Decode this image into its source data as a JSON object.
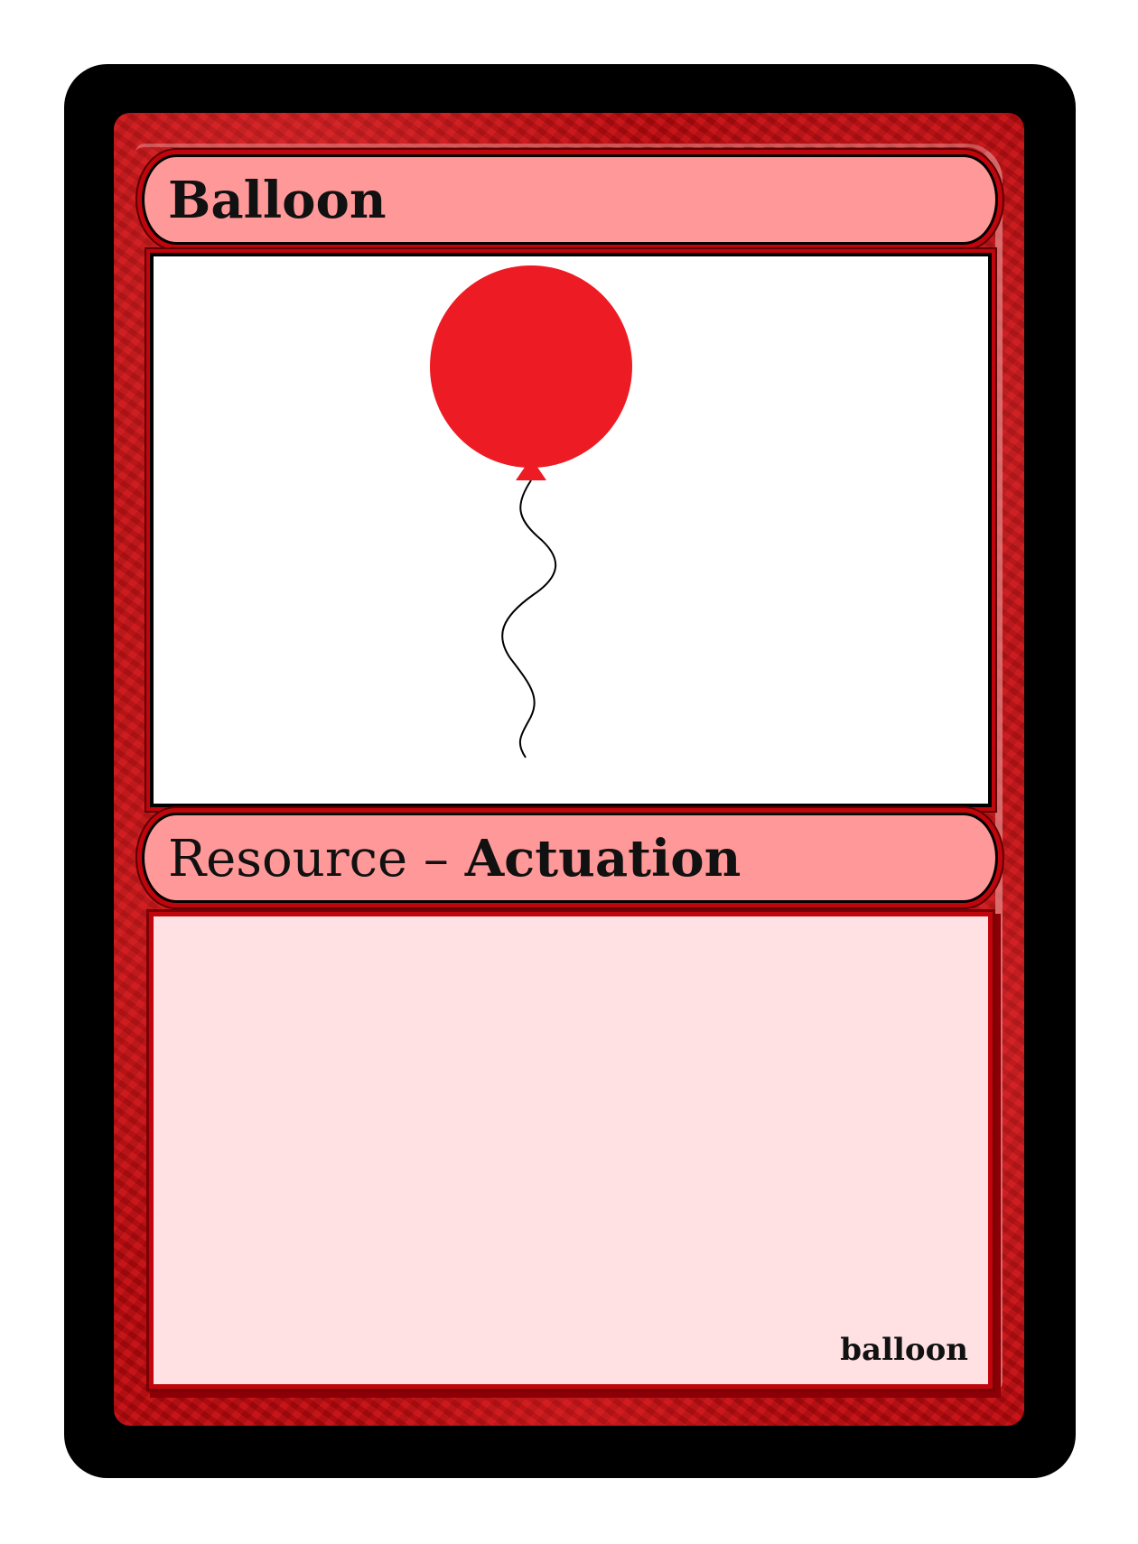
{
  "card": {
    "title": "Balloon",
    "type_main": "Resource – ",
    "type_sub": "Actuation",
    "footer_label": "balloon"
  },
  "art": {
    "icon": "balloon-icon",
    "balloon_color": "#ed1c24",
    "string_color": "#000000"
  },
  "colors": {
    "frame": "#b80d12",
    "title_bar": "#ff9999",
    "text_box": "#ffe1e3",
    "outer_border": "#000000"
  }
}
